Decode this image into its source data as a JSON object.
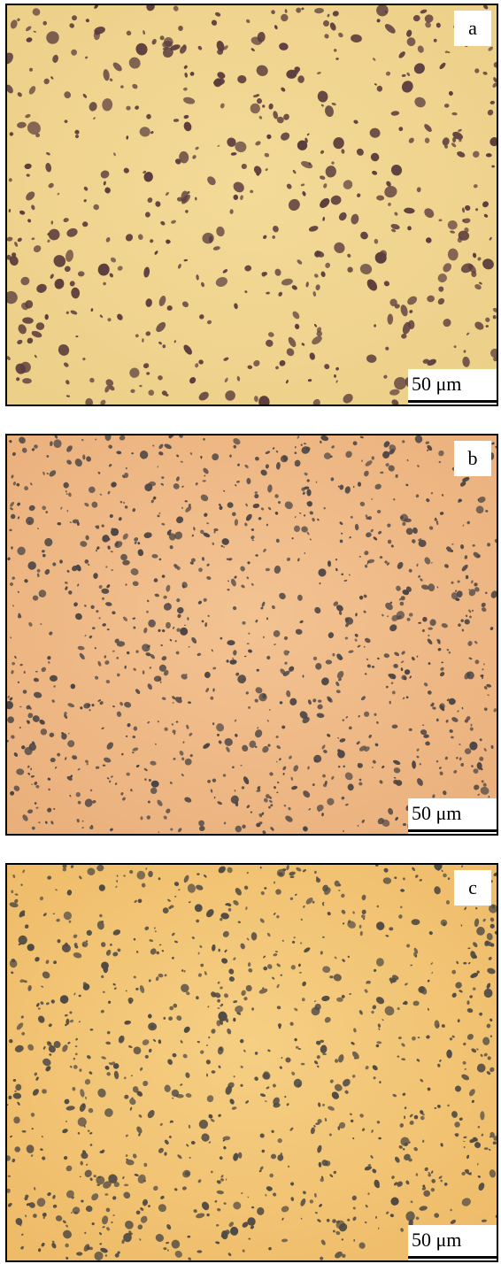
{
  "panels": [
    {
      "label": "a",
      "scale_bar": "50 μm"
    },
    {
      "label": "b",
      "scale_bar": "50 μm"
    },
    {
      "label": "c",
      "scale_bar": "50 μm"
    }
  ]
}
